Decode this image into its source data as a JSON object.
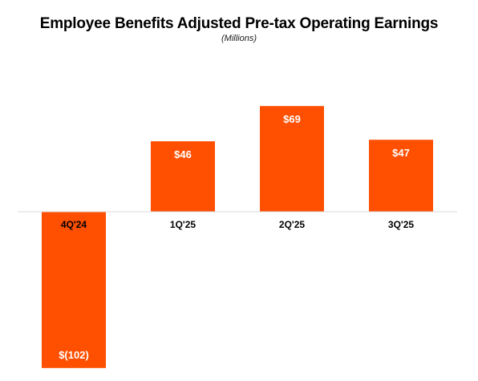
{
  "chart_data": {
    "type": "bar",
    "title": "Employee Benefits Adjusted Pre-tax Operating Earnings",
    "subtitle": "(Millions)",
    "categories": [
      "4Q'24",
      "1Q'25",
      "2Q'25",
      "3Q'25"
    ],
    "values": [
      -102,
      46,
      69,
      47
    ],
    "value_labels": [
      "$(102)",
      "$46",
      "$69",
      "$47"
    ],
    "bar_color": "#ff4f00",
    "axis_color": "#d9d9d9",
    "grid": false,
    "legend": "none"
  }
}
